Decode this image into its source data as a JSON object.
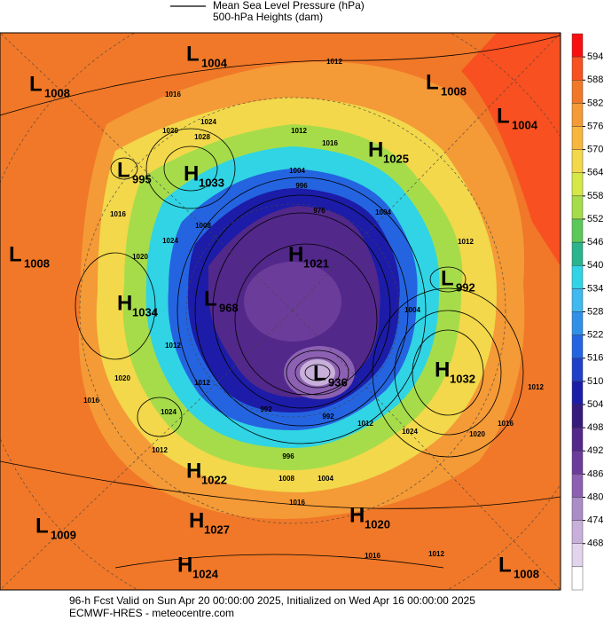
{
  "header": {
    "line1": "Mean Sea Level Pressure (hPa)",
    "line2": "500-hPa Heights (dam)"
  },
  "colorbar": {
    "ticks": [
      594,
      588,
      582,
      576,
      570,
      564,
      558,
      552,
      546,
      540,
      534,
      528,
      522,
      516,
      510,
      504,
      498,
      492,
      486,
      480,
      474,
      468
    ],
    "colors": [
      "#f81010",
      "#f85020",
      "#f07828",
      "#f49a36",
      "#f7b63e",
      "#f2d84a",
      "#d4e848",
      "#a6dc4a",
      "#5cc85a",
      "#2cb48c",
      "#30d4e4",
      "#40b8f0",
      "#3090e8",
      "#2464e0",
      "#2040c8",
      "#1c1ca8",
      "#361a7c",
      "#52288a",
      "#6c3c9a",
      "#8c60b2",
      "#aa8cc6",
      "#c8b0da",
      "#e2d4ec",
      "#ffffff"
    ]
  },
  "centers": [
    {
      "type": "L",
      "value": 1004
    },
    {
      "type": "L",
      "value": 1008
    },
    {
      "type": "L",
      "value": 1008
    },
    {
      "type": "L",
      "value": 1004
    },
    {
      "type": "L",
      "value": 995
    },
    {
      "type": "H",
      "value": 1033
    },
    {
      "type": "H",
      "value": 1025
    },
    {
      "type": "L",
      "value": 1008
    },
    {
      "type": "H",
      "value": 1021
    },
    {
      "type": "L",
      "value": 992
    },
    {
      "type": "H",
      "value": 1034
    },
    {
      "type": "L",
      "value": 968
    },
    {
      "type": "L",
      "value": 936
    },
    {
      "type": "H",
      "value": 1032
    },
    {
      "type": "H",
      "value": 1022
    },
    {
      "type": "H",
      "value": 1027
    },
    {
      "type": "L",
      "value": 1009
    },
    {
      "type": "H",
      "value": 1020
    },
    {
      "type": "H",
      "value": 1024
    },
    {
      "type": "L",
      "value": 1008
    }
  ],
  "contour_labels": [
    1012,
    1016,
    1024,
    1020,
    1028,
    1012,
    1016,
    1016,
    1020,
    1024,
    1008,
    1004,
    996,
    976,
    1004,
    1012,
    1004,
    1012,
    1012,
    1020,
    1016,
    1024,
    1012,
    992,
    992,
    1012,
    1024,
    1020,
    1016,
    1012,
    996,
    1008,
    1004,
    1016,
    1016,
    1012
  ],
  "footer": {
    "line1": "96-h Fcst Valid on Sun Apr 20 00:00:00 2025, Initialized on Wed Apr 16 00:00:00 2025",
    "line2": "ECMWF-HRES  - meteocentre.com"
  }
}
